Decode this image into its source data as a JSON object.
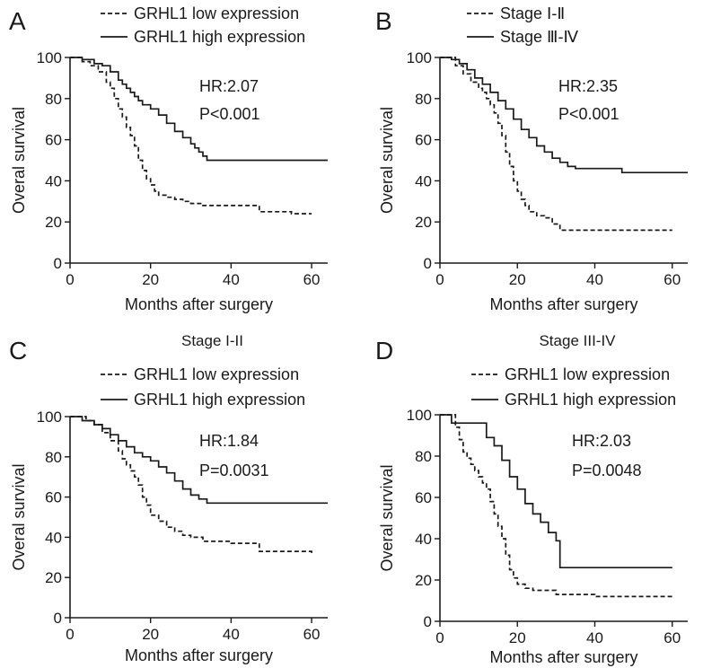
{
  "chart_data": [
    {
      "panel": "A",
      "type": "line",
      "title": "",
      "xlabel": "Months after surgery",
      "ylabel": "Overal survival",
      "xlim": [
        0,
        64
      ],
      "ylim": [
        0,
        100
      ],
      "xticks": [
        0,
        20,
        40,
        60
      ],
      "yticks": [
        0,
        20,
        40,
        60,
        80,
        100
      ],
      "grid": false,
      "legend_position": "top-left outside",
      "stats": {
        "hr": "HR:2.07",
        "p": "P<0.001"
      },
      "series": [
        {
          "name": "GRHL1 low expression",
          "line_style": "dashed",
          "x": [
            0,
            3,
            5,
            7,
            9,
            10,
            11,
            12,
            13,
            14,
            15,
            16,
            17,
            18,
            19,
            20,
            21,
            22,
            24,
            26,
            28,
            30,
            33,
            35,
            40,
            46,
            47,
            50,
            55,
            60
          ],
          "y": [
            100,
            98,
            96,
            93,
            88,
            85,
            80,
            75,
            71,
            66,
            62,
            57,
            50,
            45,
            41,
            38,
            35,
            33,
            32,
            31,
            30,
            29,
            28,
            28,
            28,
            28,
            25,
            25,
            24,
            24
          ]
        },
        {
          "name": "GRHL1 high expression",
          "line_style": "solid",
          "x": [
            0,
            3,
            6,
            8,
            10,
            12,
            13,
            14,
            15,
            16,
            17,
            18,
            20,
            22,
            24,
            26,
            28,
            30,
            31,
            32,
            33,
            34,
            40,
            50,
            64
          ],
          "y": [
            100,
            99,
            97,
            96,
            93,
            89,
            87,
            85,
            83,
            81,
            79,
            77,
            75,
            72,
            68,
            64,
            61,
            58,
            56,
            54,
            52,
            50,
            50,
            50,
            50
          ]
        }
      ]
    },
    {
      "panel": "B",
      "type": "line",
      "title": "",
      "xlabel": "Months after surgery",
      "ylabel": "Overal survival",
      "xlim": [
        0,
        64
      ],
      "ylim": [
        0,
        100
      ],
      "xticks": [
        0,
        20,
        40,
        60
      ],
      "yticks": [
        0,
        20,
        40,
        60,
        80,
        100
      ],
      "grid": false,
      "legend_position": "top-left outside",
      "stats": {
        "hr": "HR:2.35",
        "p": "P<0.001"
      },
      "series": [
        {
          "name": "Stage Ⅰ-Ⅱ",
          "line_style": "dashed",
          "x": [
            0,
            4,
            6,
            8,
            10,
            11,
            12,
            13,
            14,
            15,
            16,
            17,
            18,
            19,
            20,
            21,
            22,
            23,
            25,
            27,
            29,
            31,
            35,
            40,
            50,
            60
          ],
          "y": [
            100,
            96,
            92,
            88,
            85,
            83,
            80,
            77,
            73,
            68,
            62,
            54,
            47,
            40,
            35,
            31,
            28,
            25,
            23,
            22,
            19,
            16,
            16,
            16,
            16,
            16
          ]
        },
        {
          "name": "Stage Ⅲ-Ⅳ",
          "line_style": "solid",
          "x": [
            0,
            3,
            5,
            7,
            9,
            11,
            13,
            15,
            17,
            19,
            21,
            23,
            25,
            27,
            29,
            31,
            33,
            35,
            40,
            46,
            47,
            55,
            64
          ],
          "y": [
            100,
            99,
            97,
            94,
            90,
            87,
            83,
            79,
            75,
            70,
            65,
            61,
            57,
            54,
            51,
            49,
            47,
            46,
            46,
            46,
            44,
            44,
            44
          ]
        }
      ]
    },
    {
      "panel": "C",
      "type": "line",
      "title": "Stage I-II",
      "xlabel": "Months after surgery",
      "ylabel": "Overal survival",
      "xlim": [
        0,
        64
      ],
      "ylim": [
        0,
        100
      ],
      "xticks": [
        0,
        20,
        40,
        60
      ],
      "yticks": [
        0,
        20,
        40,
        60,
        80,
        100
      ],
      "grid": false,
      "legend_position": "top-left",
      "stats": {
        "hr": "HR:1.84",
        "p": "P=0.0031"
      },
      "series": [
        {
          "name": "GRHL1 low expression",
          "line_style": "dashed",
          "x": [
            0,
            4,
            6,
            8,
            10,
            12,
            13,
            14,
            15,
            16,
            17,
            18,
            19,
            20,
            22,
            24,
            26,
            28,
            30,
            33,
            36,
            40,
            46,
            47,
            55,
            60
          ],
          "y": [
            100,
            98,
            96,
            92,
            88,
            83,
            79,
            76,
            73,
            70,
            66,
            60,
            56,
            51,
            48,
            45,
            43,
            41,
            40,
            38,
            38,
            37,
            37,
            33,
            33,
            32
          ]
        },
        {
          "name": "GRHL1 high expression",
          "line_style": "solid",
          "x": [
            0,
            3,
            6,
            8,
            10,
            12,
            14,
            16,
            18,
            20,
            22,
            24,
            26,
            28,
            30,
            32,
            34,
            40,
            50,
            64
          ],
          "y": [
            100,
            98,
            96,
            94,
            91,
            88,
            85,
            82,
            80,
            78,
            75,
            72,
            68,
            64,
            61,
            59,
            57,
            57,
            57,
            57
          ]
        }
      ]
    },
    {
      "panel": "D",
      "type": "line",
      "title": "Stage III-IV",
      "xlabel": "Months after surgery",
      "ylabel": "Overal survival",
      "xlim": [
        0,
        64
      ],
      "ylim": [
        0,
        100
      ],
      "xticks": [
        0,
        20,
        40,
        60
      ],
      "yticks": [
        0,
        20,
        40,
        60,
        80,
        100
      ],
      "grid": false,
      "legend_position": "top-left",
      "stats": {
        "hr": "HR:2.03",
        "p": "P=0.0048"
      },
      "series": [
        {
          "name": "GRHL1 low expression",
          "line_style": "dashed",
          "x": [
            0,
            4,
            5,
            6,
            7,
            8,
            9,
            10,
            11,
            12,
            13,
            14,
            15,
            16,
            17,
            18,
            19,
            20,
            22,
            24,
            26,
            30,
            35,
            40,
            50,
            60
          ],
          "y": [
            100,
            94,
            88,
            82,
            79,
            76,
            73,
            70,
            67,
            64,
            58,
            52,
            46,
            40,
            32,
            25,
            21,
            18,
            16,
            15,
            15,
            13,
            13,
            12,
            12,
            12
          ]
        },
        {
          "name": "GRHL1 high expression",
          "line_style": "solid",
          "x": [
            0,
            3,
            6,
            10,
            12,
            14,
            16,
            18,
            20,
            22,
            24,
            26,
            28,
            30,
            31,
            40,
            50,
            60
          ],
          "y": [
            100,
            96,
            96,
            96,
            89,
            85,
            78,
            70,
            64,
            57,
            52,
            48,
            43,
            39,
            26,
            26,
            26,
            26
          ]
        }
      ]
    }
  ]
}
